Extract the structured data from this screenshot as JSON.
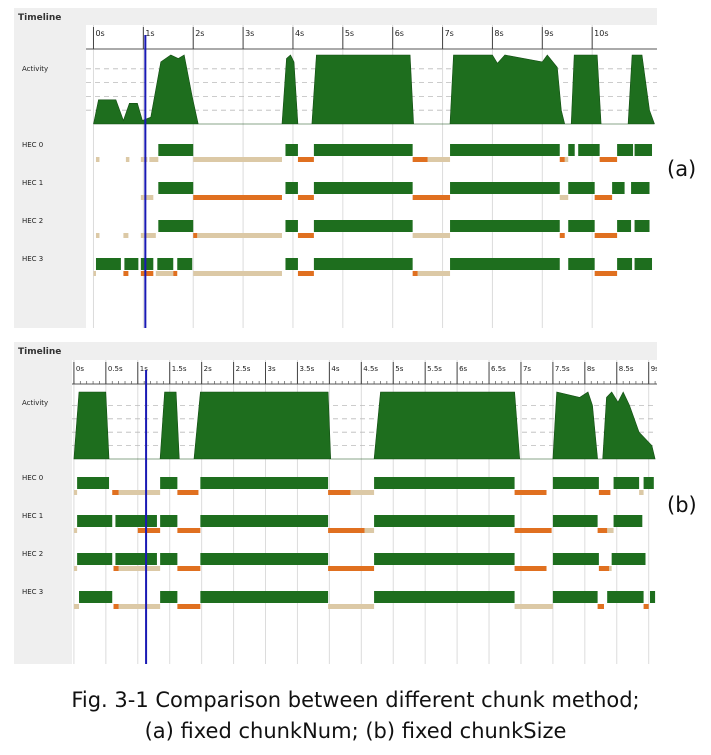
{
  "caption": {
    "line1": "Fig. 3-1 Comparison between different chunk method;",
    "line2": "(a) fixed chunkNum; (b) fixed chunkSize"
  },
  "colors": {
    "running": "#1e6e1e",
    "gc": "#e07020",
    "idle_wait": "#dcc9a6",
    "cursor": "#1a1ab4",
    "panel_bg": "#efefef"
  },
  "chart_data": [
    {
      "type": "timeline",
      "tag": "(a)",
      "title": "Timeline",
      "activity_label": "Activity",
      "xlim": [
        -0.15,
        11.3
      ],
      "ticks": [
        0,
        1,
        2,
        3,
        4,
        5,
        6,
        7,
        8,
        9,
        10
      ],
      "tick_labels": [
        "0s",
        "1s",
        "2s",
        "3s",
        "4s",
        "5s",
        "6s",
        "7s",
        "8s",
        "9s",
        "10s"
      ],
      "minor_ticks": false,
      "cursor_time": 1.04,
      "activity": [
        [
          0,
          0
        ],
        [
          0.1,
          0.35
        ],
        [
          0.45,
          0.35
        ],
        [
          0.6,
          0.05
        ],
        [
          0.72,
          0.3
        ],
        [
          0.88,
          0.3
        ],
        [
          0.98,
          0.05
        ],
        [
          1.15,
          0.1
        ],
        [
          1.35,
          0.9
        ],
        [
          1.55,
          1.0
        ],
        [
          1.7,
          0.95
        ],
        [
          1.82,
          1.0
        ],
        [
          1.98,
          0.4
        ],
        [
          2.1,
          0
        ],
        [
          3.78,
          0
        ],
        [
          3.87,
          0.95
        ],
        [
          3.95,
          1.0
        ],
        [
          4.02,
          0.9
        ],
        [
          4.1,
          0
        ],
        [
          4.38,
          0
        ],
        [
          4.47,
          1.0
        ],
        [
          6.35,
          1.0
        ],
        [
          6.42,
          0
        ],
        [
          7.15,
          0
        ],
        [
          7.22,
          1.0
        ],
        [
          8.0,
          1.0
        ],
        [
          8.1,
          0.88
        ],
        [
          8.25,
          1.0
        ],
        [
          9.0,
          0.9
        ],
        [
          9.1,
          1.0
        ],
        [
          9.3,
          0.82
        ],
        [
          9.38,
          0.2
        ],
        [
          9.45,
          0
        ],
        [
          9.58,
          0
        ],
        [
          9.64,
          1.0
        ],
        [
          10.1,
          1.0
        ],
        [
          10.18,
          0
        ],
        [
          10.72,
          0
        ],
        [
          10.8,
          1.0
        ],
        [
          11.0,
          1.0
        ],
        [
          11.15,
          0.2
        ],
        [
          11.25,
          0
        ]
      ],
      "hecs": [
        {
          "label": "HEC 0",
          "running": [
            [
              1.3,
              2.0
            ],
            [
              3.85,
              4.1
            ],
            [
              4.42,
              6.4
            ],
            [
              7.15,
              9.35
            ],
            [
              9.52,
              9.65
            ],
            [
              9.72,
              10.15
            ],
            [
              10.5,
              10.82
            ],
            [
              10.85,
              11.2
            ]
          ],
          "gc": [
            [
              4.1,
              4.42
            ],
            [
              6.4,
              6.7
            ],
            [
              9.35,
              9.45
            ],
            [
              10.15,
              10.5
            ]
          ],
          "idle": [
            [
              0.05,
              0.12
            ],
            [
              0.65,
              0.72
            ],
            [
              0.95,
              1.08
            ],
            [
              1.12,
              1.3
            ],
            [
              2.0,
              3.78
            ],
            [
              6.7,
              7.15
            ],
            [
              9.45,
              9.52
            ]
          ]
        },
        {
          "label": "HEC 1",
          "running": [
            [
              1.3,
              2.0
            ],
            [
              3.85,
              4.1
            ],
            [
              4.42,
              6.4
            ],
            [
              7.15,
              9.35
            ],
            [
              9.52,
              10.05
            ],
            [
              10.4,
              10.65
            ],
            [
              10.78,
              11.15
            ]
          ],
          "gc": [
            [
              2.0,
              3.78
            ],
            [
              4.1,
              4.42
            ],
            [
              6.4,
              7.15
            ],
            [
              10.05,
              10.4
            ]
          ],
          "idle": [
            [
              0.95,
              1.2
            ],
            [
              9.35,
              9.52
            ]
          ]
        },
        {
          "label": "HEC 2",
          "running": [
            [
              1.3,
              2.0
            ],
            [
              3.85,
              4.1
            ],
            [
              4.42,
              6.4
            ],
            [
              7.15,
              9.35
            ],
            [
              9.52,
              10.05
            ],
            [
              10.5,
              10.78
            ],
            [
              10.85,
              11.15
            ]
          ],
          "gc": [
            [
              2.0,
              2.08
            ],
            [
              4.1,
              4.42
            ],
            [
              9.35,
              9.45
            ],
            [
              10.05,
              10.5
            ]
          ],
          "idle": [
            [
              0.05,
              0.12
            ],
            [
              0.6,
              0.7
            ],
            [
              0.95,
              1.25
            ],
            [
              2.08,
              3.78
            ],
            [
              6.4,
              7.15
            ]
          ]
        },
        {
          "label": "HEC 3",
          "running": [
            [
              0.05,
              0.55
            ],
            [
              0.62,
              0.9
            ],
            [
              0.95,
              1.2
            ],
            [
              1.28,
              1.6
            ],
            [
              1.68,
              1.98
            ],
            [
              3.85,
              4.1
            ],
            [
              4.42,
              6.4
            ],
            [
              7.15,
              9.35
            ],
            [
              9.52,
              10.05
            ],
            [
              10.5,
              10.8
            ],
            [
              10.85,
              11.2
            ]
          ],
          "gc": [
            [
              0.6,
              0.7
            ],
            [
              0.95,
              1.2
            ],
            [
              1.6,
              1.68
            ],
            [
              4.1,
              4.42
            ],
            [
              6.4,
              6.5
            ],
            [
              10.05,
              10.5
            ]
          ],
          "idle": [
            [
              0,
              0.05
            ],
            [
              1.25,
              1.6
            ],
            [
              2.0,
              3.78
            ],
            [
              6.5,
              7.15
            ]
          ]
        }
      ]
    },
    {
      "type": "timeline",
      "tag": "(b)",
      "title": "Timeline",
      "activity_label": "Activity",
      "xlim": [
        -0.03,
        9.13
      ],
      "ticks": [
        0,
        0.5,
        1,
        1.5,
        2,
        2.5,
        3,
        3.5,
        4,
        4.5,
        5,
        5.5,
        6,
        6.5,
        7,
        7.5,
        8,
        8.5,
        9
      ],
      "tick_labels": [
        "0s",
        "0.5s",
        "1s",
        "1.5s",
        "2s",
        "2.5s",
        "3s",
        "3.5s",
        "4s",
        "4.5s",
        "5s",
        "5.5s",
        "6s",
        "6.5s",
        "7s",
        "7.5s",
        "8s",
        "8.5s",
        "9s"
      ],
      "minor_ticks": true,
      "cursor_time": 1.13,
      "activity": [
        [
          0,
          0
        ],
        [
          0.08,
          1.0
        ],
        [
          0.5,
          1.0
        ],
        [
          0.55,
          0
        ],
        [
          1.35,
          0
        ],
        [
          1.42,
          1.0
        ],
        [
          1.6,
          1.0
        ],
        [
          1.65,
          0
        ],
        [
          1.88,
          0
        ],
        [
          1.98,
          1.0
        ],
        [
          3.98,
          1.0
        ],
        [
          4.02,
          0
        ],
        [
          4.7,
          0
        ],
        [
          4.8,
          1.0
        ],
        [
          6.9,
          1.0
        ],
        [
          6.98,
          0
        ],
        [
          7.5,
          0
        ],
        [
          7.56,
          1.0
        ],
        [
          7.92,
          0.92
        ],
        [
          8.05,
          1.0
        ],
        [
          8.12,
          0.8
        ],
        [
          8.2,
          0
        ],
        [
          8.28,
          0
        ],
        [
          8.34,
          0.92
        ],
        [
          8.42,
          1.0
        ],
        [
          8.52,
          0.85
        ],
        [
          8.6,
          1.0
        ],
        [
          8.7,
          0.8
        ],
        [
          8.85,
          0.4
        ],
        [
          9.05,
          0.2
        ],
        [
          9.1,
          0
        ]
      ],
      "hecs": [
        {
          "label": "HEC 0",
          "running": [
            [
              0.05,
              0.55
            ],
            [
              1.35,
              1.62
            ],
            [
              1.98,
              3.98
            ],
            [
              4.7,
              6.9
            ],
            [
              7.5,
              8.22
            ],
            [
              8.45,
              8.85
            ],
            [
              8.92,
              9.08
            ]
          ],
          "gc": [
            [
              0.6,
              0.7
            ],
            [
              1.62,
              1.95
            ],
            [
              3.98,
              4.33
            ],
            [
              6.9,
              7.4
            ],
            [
              8.22,
              8.4
            ]
          ],
          "idle": [
            [
              0,
              0.05
            ],
            [
              0.7,
              1.35
            ],
            [
              4.33,
              4.7
            ],
            [
              8.85,
              8.92
            ]
          ]
        },
        {
          "label": "HEC 1",
          "running": [
            [
              0.05,
              0.6
            ],
            [
              0.65,
              1.3
            ],
            [
              1.35,
              1.62
            ],
            [
              1.98,
              3.98
            ],
            [
              4.7,
              6.9
            ],
            [
              7.5,
              8.2
            ],
            [
              8.45,
              8.9
            ]
          ],
          "gc": [
            [
              1.0,
              1.35
            ],
            [
              1.62,
              1.98
            ],
            [
              3.98,
              4.55
            ],
            [
              6.9,
              7.48
            ],
            [
              8.2,
              8.35
            ]
          ],
          "idle": [
            [
              0,
              0.05
            ],
            [
              4.55,
              4.7
            ],
            [
              8.35,
              8.45
            ]
          ]
        },
        {
          "label": "HEC 2",
          "running": [
            [
              0.05,
              0.6
            ],
            [
              0.65,
              1.3
            ],
            [
              1.35,
              1.62
            ],
            [
              1.98,
              3.98
            ],
            [
              4.7,
              6.9
            ],
            [
              7.5,
              8.22
            ],
            [
              8.42,
              8.95
            ]
          ],
          "gc": [
            [
              0.62,
              0.7
            ],
            [
              1.62,
              1.98
            ],
            [
              3.98,
              4.7
            ],
            [
              6.9,
              7.4
            ],
            [
              8.22,
              8.38
            ]
          ],
          "idle": [
            [
              0,
              0.05
            ],
            [
              0.7,
              1.35
            ],
            [
              8.38,
              8.42
            ]
          ]
        },
        {
          "label": "HEC 3",
          "running": [
            [
              0.08,
              0.6
            ],
            [
              1.35,
              1.62
            ],
            [
              1.98,
              3.98
            ],
            [
              4.7,
              6.9
            ],
            [
              7.5,
              8.2
            ],
            [
              8.35,
              8.92
            ],
            [
              9.02,
              9.1
            ]
          ],
          "gc": [
            [
              0.62,
              0.7
            ],
            [
              1.62,
              1.98
            ],
            [
              8.2,
              8.3
            ],
            [
              8.92,
              9.0
            ]
          ],
          "idle": [
            [
              0,
              0.08
            ],
            [
              0.7,
              1.35
            ],
            [
              3.98,
              4.7
            ],
            [
              6.9,
              7.5
            ]
          ]
        }
      ]
    }
  ]
}
